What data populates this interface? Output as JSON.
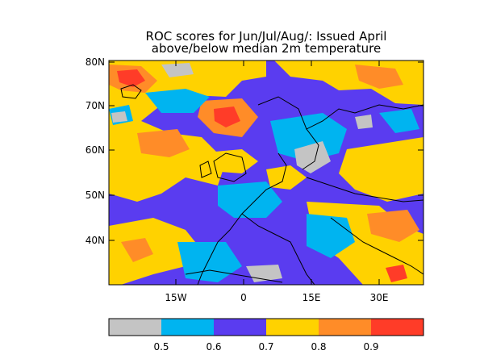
{
  "title": {
    "line1": "ROC scores for Jun/Jul/Aug/: Issued April",
    "line2": "above/below median 2m temperature"
  },
  "axes": {
    "y_ticks": [
      "80N",
      "70N",
      "60N",
      "50N",
      "40N"
    ],
    "x_ticks": [
      "15W",
      "0",
      "15E",
      "30E"
    ],
    "lon_range": [
      -30,
      40
    ],
    "lat_range": [
      30,
      80
    ]
  },
  "colorbar": {
    "colors": [
      "#c4c4c4",
      "#00b4f0",
      "#5a3cf0",
      "#ffd200",
      "#ff8c28",
      "#ff3c28"
    ],
    "labels": [
      "0.5",
      "0.6",
      "0.7",
      "0.8",
      "0.9"
    ]
  }
}
